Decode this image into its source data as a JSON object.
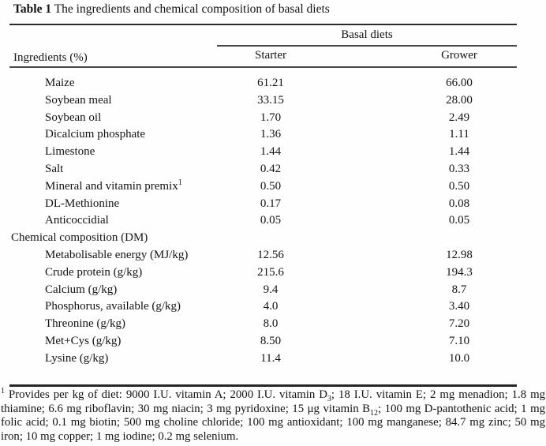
{
  "caption": {
    "label": "Table 1",
    "text": " The ingredients and chemical composition of basal diets"
  },
  "header": {
    "group_label": "Basal diets",
    "stub_label": "Ingredients (%)",
    "columns": [
      "Starter",
      "Grower"
    ]
  },
  "colors": {
    "text": "#141414",
    "rule": "#3d3d3d",
    "background": "#fefefe"
  },
  "rows": [
    {
      "label": "Maize",
      "section": false,
      "starter": "61.21",
      "grower": "66.00"
    },
    {
      "label": "Soybean meal",
      "section": false,
      "starter": "33.15",
      "grower": "28.00"
    },
    {
      "label": "Soybean oil",
      "section": false,
      "starter": "1.70",
      "grower": "2.49"
    },
    {
      "label": "Dicalcium phosphate",
      "section": false,
      "starter": "1.36",
      "grower": "1.11"
    },
    {
      "label": "Limestone",
      "section": false,
      "starter": "1.44",
      "grower": "1.44"
    },
    {
      "label": "Salt",
      "section": false,
      "starter": "0.42",
      "grower": "0.33"
    },
    {
      "label": "Mineral and vitamin premix",
      "sup": "1",
      "section": false,
      "starter": "0.50",
      "grower": "0.50"
    },
    {
      "label": "DL-Methionine",
      "section": false,
      "starter": "0.17",
      "grower": "0.08"
    },
    {
      "label": "Anticoccidial",
      "section": false,
      "starter": "0.05",
      "grower": "0.05"
    },
    {
      "label": "Chemical composition (DM)",
      "section": true,
      "starter": "",
      "grower": ""
    },
    {
      "label": "Metabolisable energy (MJ/kg)",
      "section": false,
      "starter": "12.56",
      "grower": "12.98"
    },
    {
      "label": "Crude protein (g/kg)",
      "section": false,
      "starter": "215.6",
      "grower": "194.3"
    },
    {
      "label": "Calcium (g/kg)",
      "section": false,
      "starter": "9.4",
      "grower": "8.7"
    },
    {
      "label": "Phosphorus, available (g/kg)",
      "section": false,
      "starter": "4.0",
      "grower": "3.40"
    },
    {
      "label": "Threonine (g/kg)",
      "section": false,
      "starter": "8.0",
      "grower": "7.20"
    },
    {
      "label": "Met+Cys (g/kg)",
      "section": false,
      "starter": "8.50",
      "grower": "7.10"
    },
    {
      "label": "Lysine (g/kg)",
      "section": false,
      "starter": "11.4",
      "grower": "10.0"
    }
  ],
  "footnote": {
    "segments": [
      {
        "type": "sup",
        "text": "1"
      },
      {
        "type": "text",
        "text": " Provides per kg of diet: 9000 I.U. vitamin A; 2000 I.U. vitamin D"
      },
      {
        "type": "sub",
        "text": "3"
      },
      {
        "type": "text",
        "text": "; 18 I.U. vitamin E; 2 mg menadion; 1.8 mg thiamine; 6.6 mg riboflavin; 30 mg niacin; 3 mg pyridoxine; 15 μg vitamin B"
      },
      {
        "type": "sub",
        "text": "12"
      },
      {
        "type": "text",
        "text": "; 100 mg D-pantothenic acid; 1 mg folic acid; 0.1 mg biotin; 500 mg choline chloride; 100 mg antioxidant; 100 mg manganese; 84.7 mg zinc; 50 mg iron; 10 mg copper; 1 mg iodine; 0.2 mg selenium."
      }
    ]
  }
}
